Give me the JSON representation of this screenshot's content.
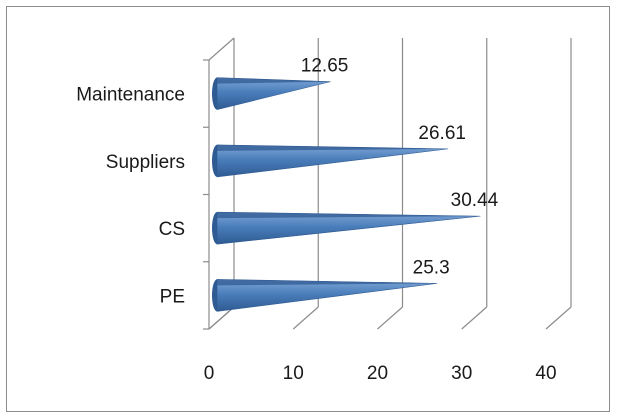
{
  "chart_data": {
    "type": "bar",
    "orientation": "horizontal",
    "style": "3d-cone",
    "title": "",
    "xlabel": "",
    "ylabel": "",
    "categories": [
      "PE",
      "CS",
      "Suppliers",
      "Maintenance"
    ],
    "values": [
      25.3,
      30.44,
      26.61,
      12.65
    ],
    "data_labels": [
      "25.3",
      "30.44",
      "26.61",
      "12.65"
    ],
    "xlim": [
      0,
      40
    ],
    "x_ticks": [
      0,
      10,
      20,
      30,
      40
    ],
    "x_tick_labels": [
      "0",
      "10",
      "20",
      "30",
      "40"
    ],
    "grid": true,
    "legend": "none",
    "colors": {
      "bar_fill": "#4a7ebb",
      "bar_dark": "#2f5a92",
      "bar_light": "#7fa6d6",
      "grid": "#8c8c8c",
      "frame_border": "#8c8c8c"
    }
  }
}
